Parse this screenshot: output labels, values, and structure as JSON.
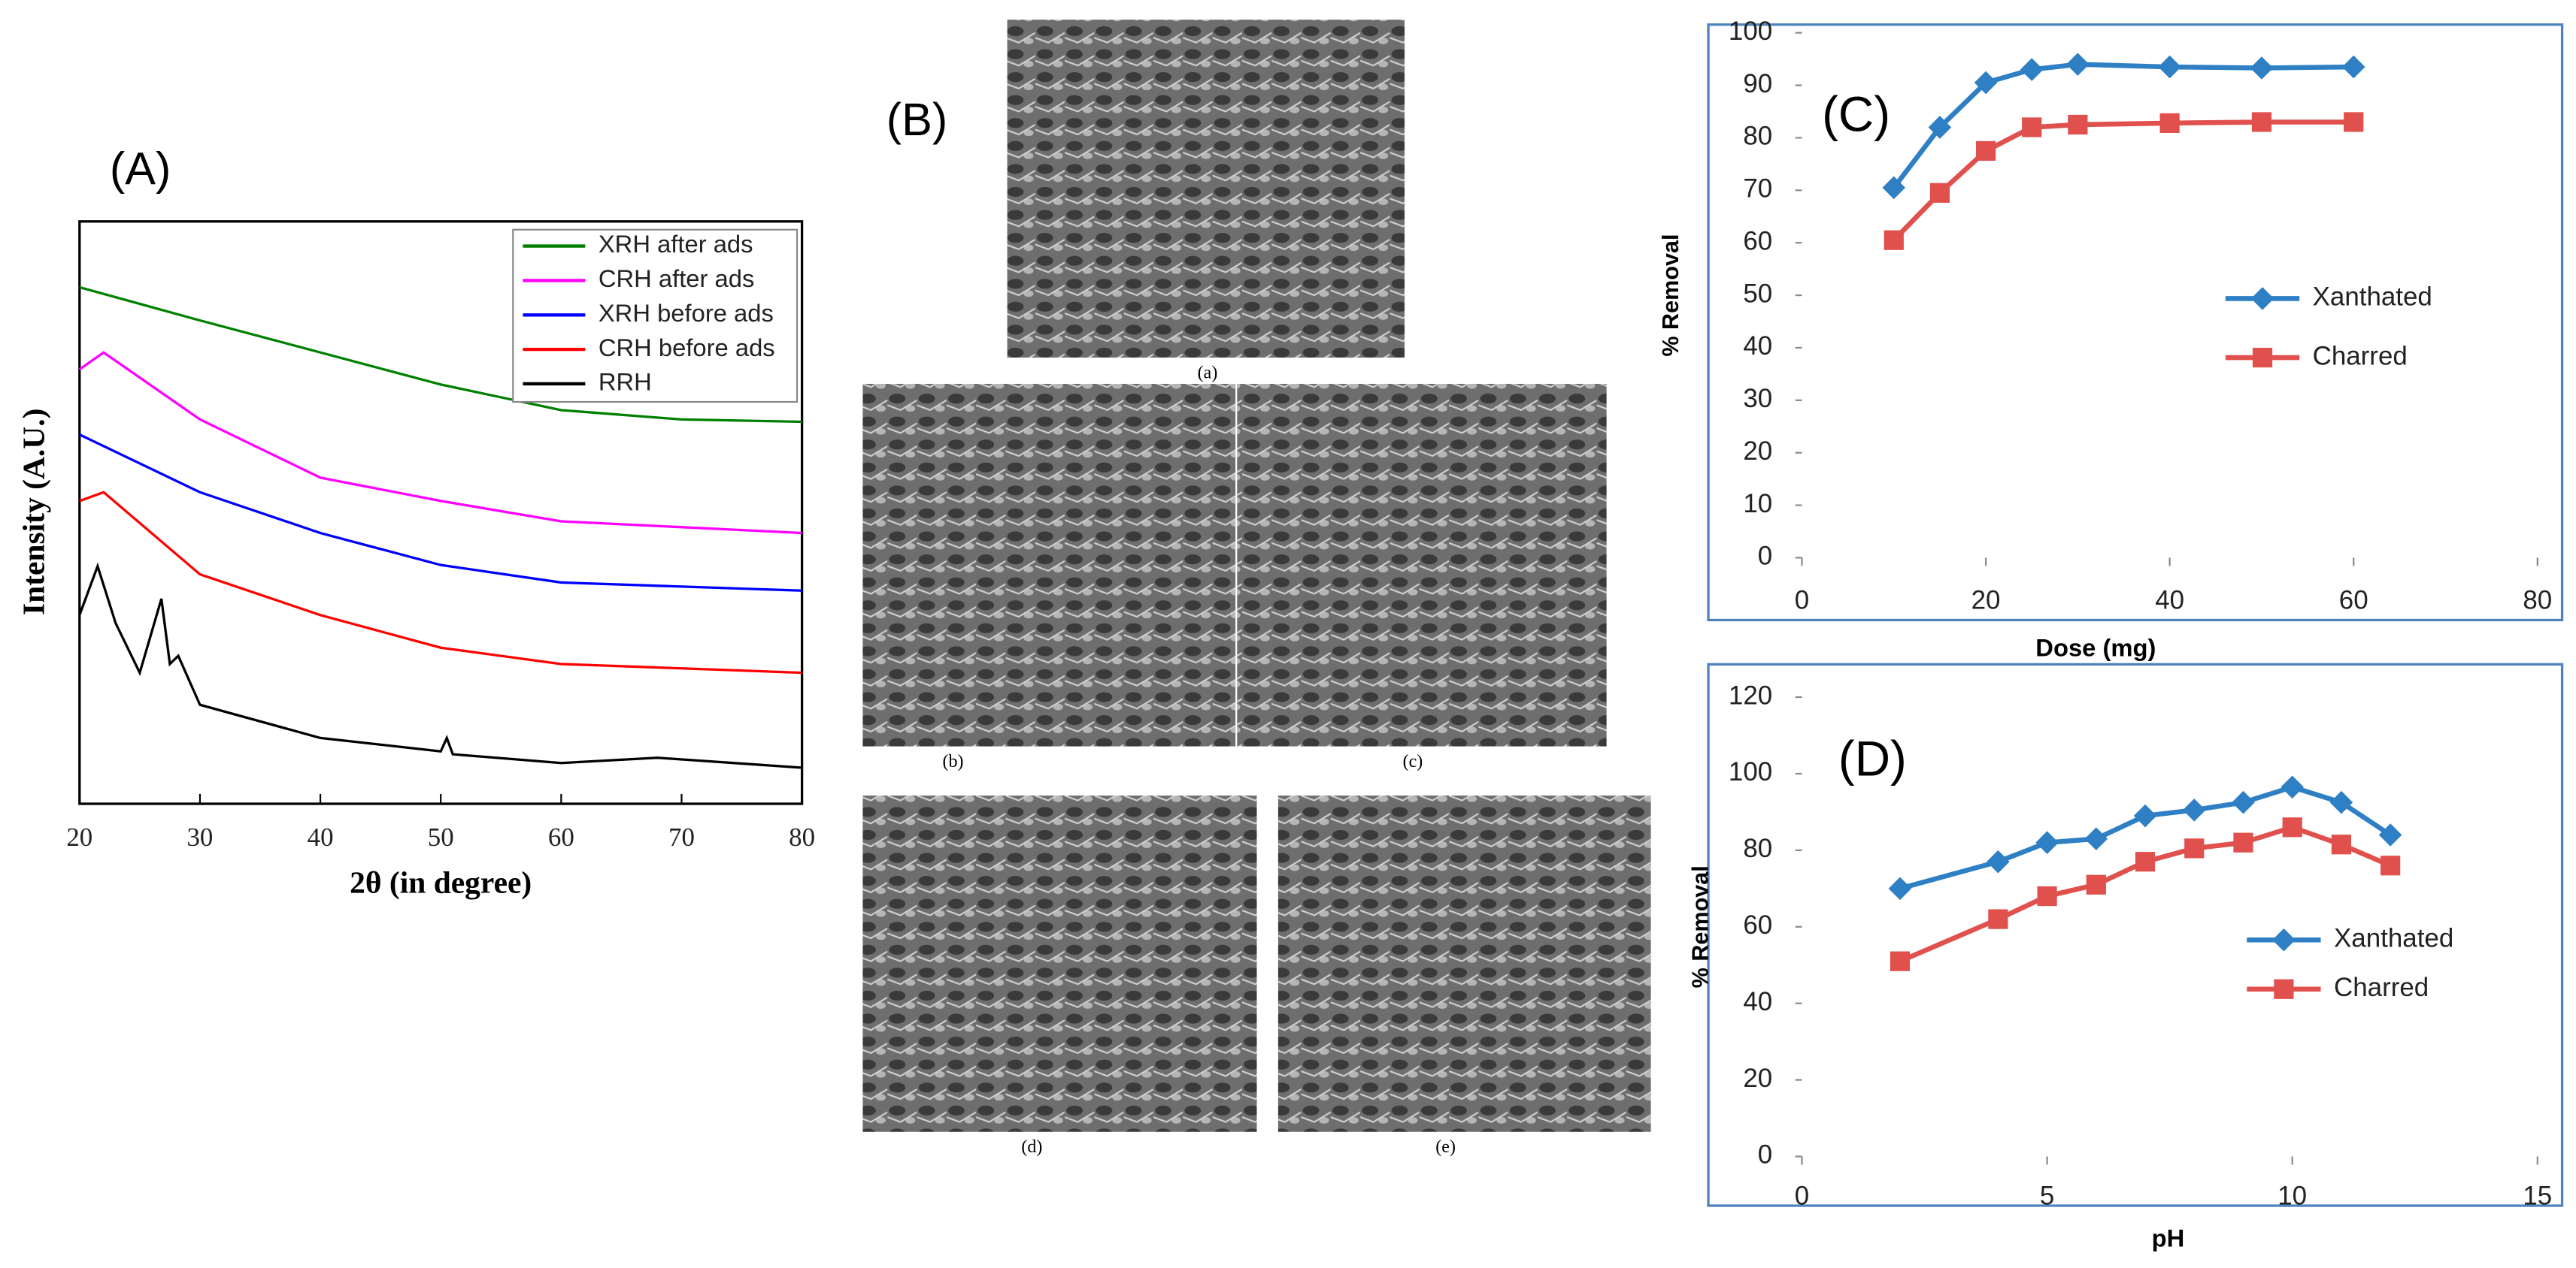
{
  "chart_data": [
    {
      "type": "line",
      "title": "(A)",
      "xlabel": "2θ (in degree)",
      "ylabel": "Intensity (A.U.)",
      "xlim": [
        20,
        80
      ],
      "xticks": [
        20,
        30,
        40,
        50,
        60,
        70,
        80
      ],
      "ylim": [
        0,
        100
      ],
      "series": [
        {
          "name": "XRH after ads",
          "color": "#008000",
          "x": [
            20,
            30,
            40,
            50,
            60,
            70,
            80
          ],
          "values": [
            88.7,
            83,
            77.5,
            72,
            67.6,
            66,
            65.6
          ]
        },
        {
          "name": "CRH after ads",
          "color": "#ff00ff",
          "x": [
            20,
            22,
            30,
            40,
            50,
            60,
            80
          ],
          "values": [
            74.6,
            77.5,
            66,
            56,
            52,
            48.5,
            46.5
          ]
        },
        {
          "name": "XRH before ads",
          "color": "#0000ff",
          "x": [
            20,
            30,
            40,
            50,
            60,
            80
          ],
          "values": [
            63.4,
            53.5,
            46.5,
            41,
            38,
            36.6
          ]
        },
        {
          "name": "CRH before ads",
          "color": "#ff0000",
          "x": [
            20,
            22,
            30,
            40,
            50,
            60,
            80
          ],
          "values": [
            52,
            53.5,
            39.4,
            32.4,
            26.8,
            24,
            22.5
          ]
        },
        {
          "name": "RRH",
          "color": "#000000",
          "x": [
            20,
            21.5,
            23,
            25,
            26.8,
            27.5,
            28.2,
            30,
            40,
            50,
            50.5,
            51,
            60,
            68,
            80
          ],
          "values": [
            32.4,
            40.8,
            31,
            22.5,
            35.2,
            24,
            25.4,
            17,
            11.3,
            9,
            11.3,
            8.5,
            7,
            7.9,
            6.2
          ]
        }
      ]
    },
    {
      "type": "image-panel",
      "title": "(B)",
      "images": [
        "(a)",
        "(b)",
        "(c)",
        "(d)",
        "(e)"
      ]
    },
    {
      "type": "line",
      "title": "(C)",
      "xlabel": "Dose (mg)",
      "ylabel": "% Removal",
      "xlim": [
        0,
        80
      ],
      "xticks": [
        0,
        20,
        40,
        60,
        80
      ],
      "ylim": [
        0,
        100
      ],
      "yticks": [
        0,
        10,
        20,
        30,
        40,
        50,
        60,
        70,
        80,
        90,
        100
      ],
      "series": [
        {
          "name": "Xanthated",
          "color": "#2e7fc4",
          "marker": "diamond",
          "x": [
            10,
            15,
            20,
            25,
            30,
            40,
            50,
            60
          ],
          "values": [
            70.5,
            82,
            90.5,
            93,
            94,
            93.5,
            93.3,
            93.5
          ]
        },
        {
          "name": "Charred",
          "color": "#e0504d",
          "marker": "square",
          "x": [
            10,
            15,
            20,
            25,
            30,
            40,
            50,
            60
          ],
          "values": [
            60.5,
            69.5,
            77.5,
            82,
            82.5,
            82.8,
            83,
            83
          ]
        }
      ]
    },
    {
      "type": "line",
      "title": "(D)",
      "xlabel": "pH",
      "ylabel": "% Removal",
      "xlim": [
        0,
        15
      ],
      "xticks": [
        0,
        5,
        10,
        15
      ],
      "ylim": [
        0,
        120
      ],
      "yticks": [
        0,
        20,
        40,
        60,
        80,
        100,
        120
      ],
      "series": [
        {
          "name": "Xanthated",
          "color": "#2e7fc4",
          "marker": "diamond",
          "x": [
            2,
            4,
            5,
            6,
            7,
            8,
            9,
            10,
            11,
            12
          ],
          "values": [
            70,
            77,
            82,
            83,
            89,
            90.5,
            92.5,
            96.5,
            92.5,
            84
          ]
        },
        {
          "name": "Charred",
          "color": "#e0504d",
          "marker": "square",
          "x": [
            2,
            4,
            5,
            6,
            7,
            8,
            9,
            10,
            11,
            12
          ],
          "values": [
            51,
            62,
            68,
            71,
            77,
            80.5,
            82,
            86,
            81.5,
            76
          ]
        }
      ]
    }
  ]
}
